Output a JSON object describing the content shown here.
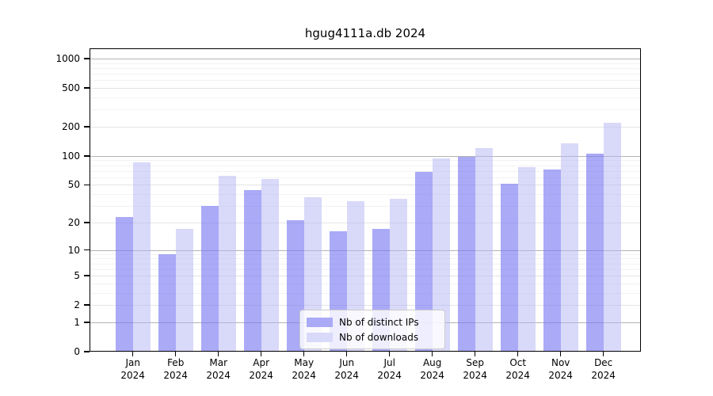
{
  "chart_data": {
    "type": "bar",
    "title": "hgug4111a.db 2024",
    "categories": [
      "Jan 2024",
      "Feb 2024",
      "Mar 2024",
      "Apr 2024",
      "May 2024",
      "Jun 2024",
      "Jul 2024",
      "Aug 2024",
      "Sep 2024",
      "Oct 2024",
      "Nov 2024",
      "Dec 2024"
    ],
    "x_tick_months": [
      "Jan",
      "Feb",
      "Mar",
      "Apr",
      "May",
      "Jun",
      "Jul",
      "Aug",
      "Sep",
      "Oct",
      "Nov",
      "Dec"
    ],
    "x_tick_year": "2024",
    "series": [
      {
        "name": "Nb of distinct IPs",
        "color": "#aaaaf7",
        "fill": "rgba(120,120,243,0.63)",
        "values": [
          23,
          9,
          30,
          44,
          21,
          16,
          17,
          68,
          97,
          51,
          72,
          105
        ]
      },
      {
        "name": "Nb of downloads",
        "color": "#d9d9f9",
        "fill": "rgba(180,180,243,0.50)",
        "values": [
          85,
          17,
          62,
          58,
          37,
          34,
          36,
          94,
          121,
          76,
          135,
          221
        ]
      }
    ],
    "yscale": "log1p",
    "ylim": [
      0,
      1280
    ],
    "y_ticks": [
      0,
      1,
      2,
      5,
      10,
      20,
      50,
      100,
      200,
      500,
      1000
    ],
    "y_tick_labels": [
      "0",
      "1",
      "2",
      "5",
      "10",
      "20",
      "50",
      "100",
      "200",
      "500",
      "1000"
    ],
    "y_minor_ticks": [
      3,
      4,
      6,
      7,
      8,
      9,
      30,
      40,
      60,
      70,
      80,
      90,
      300,
      400,
      600,
      700,
      800,
      900
    ],
    "grid": true,
    "legend_position": "inside-bottom-center"
  }
}
